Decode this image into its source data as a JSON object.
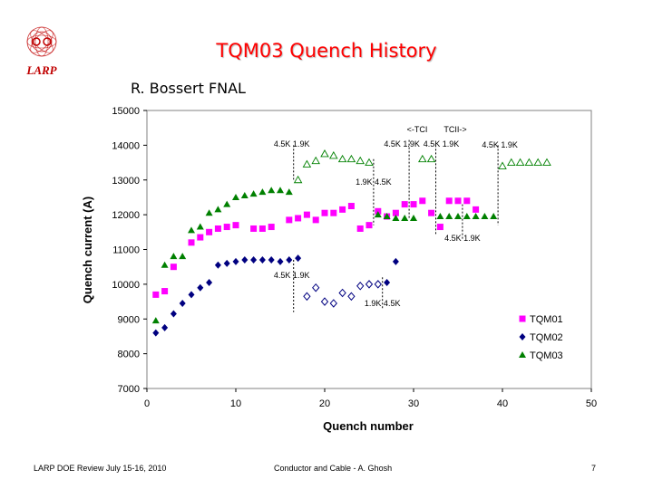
{
  "slide": {
    "title": "TQM03 Quench History",
    "subtitle": "R. Bossert FNAL",
    "logo_text": "LARP",
    "footer_left": "LARP DOE Review July 15-16, 2010",
    "footer_center": "Conductor and Cable - A. Ghosh",
    "page_number": "7"
  },
  "chart_data": {
    "type": "scatter",
    "xlabel": "Quench number",
    "ylabel": "Quench current (A)",
    "xlim": [
      0,
      50
    ],
    "ylim": [
      7000,
      15000
    ],
    "x_ticks": [
      0,
      10,
      20,
      30,
      40,
      50
    ],
    "y_ticks": [
      7000,
      8000,
      9000,
      10000,
      11000,
      12000,
      13000,
      14000,
      15000
    ],
    "series": [
      {
        "name": "TQM01",
        "marker": "square",
        "color": "#ff00ff",
        "points": [
          [
            1,
            9700
          ],
          [
            2,
            9800
          ],
          [
            3,
            10500
          ],
          [
            5,
            11200
          ],
          [
            6,
            11350
          ],
          [
            7,
            11500
          ],
          [
            8,
            11600
          ],
          [
            9,
            11650
          ],
          [
            10,
            11700
          ],
          [
            12,
            11600
          ],
          [
            13,
            11600
          ],
          [
            14,
            11650
          ],
          [
            16,
            11850
          ],
          [
            17,
            11900
          ],
          [
            18,
            12000
          ],
          [
            19,
            11850
          ],
          [
            20,
            12050
          ],
          [
            21,
            12050
          ],
          [
            22,
            12150
          ],
          [
            23,
            12250
          ],
          [
            24,
            11600
          ],
          [
            25,
            11700
          ],
          [
            26,
            12100
          ],
          [
            27,
            11950
          ],
          [
            28,
            12050
          ],
          [
            29,
            12300
          ],
          [
            30,
            12300
          ],
          [
            31,
            12400
          ],
          [
            32,
            12050
          ],
          [
            33,
            11650
          ],
          [
            34,
            12400
          ],
          [
            35,
            12400
          ],
          [
            36,
            12400
          ],
          [
            37,
            12150
          ]
        ]
      },
      {
        "name": "TQM02",
        "marker": "diamond",
        "color": "#000080",
        "points": [
          [
            1,
            8600
          ],
          [
            2,
            8750
          ],
          [
            3,
            9150
          ],
          [
            4,
            9450
          ],
          [
            5,
            9700
          ],
          [
            6,
            9900
          ],
          [
            7,
            10050
          ],
          [
            8,
            10550
          ],
          [
            9,
            10600
          ],
          [
            10,
            10650
          ],
          [
            11,
            10700
          ],
          [
            12,
            10700
          ],
          [
            13,
            10700
          ],
          [
            14,
            10700
          ],
          [
            15,
            10650
          ],
          [
            16,
            10700
          ],
          [
            17,
            10750
          ],
          [
            18,
            9650
          ],
          [
            19,
            9900
          ],
          [
            20,
            9500
          ],
          [
            21,
            9450
          ],
          [
            22,
            9750
          ],
          [
            23,
            9650
          ],
          [
            24,
            9950
          ],
          [
            25,
            10000
          ],
          [
            26,
            10000
          ],
          [
            27,
            10050
          ],
          [
            28,
            10650
          ]
        ]
      },
      {
        "name": "TQM03",
        "marker": "triangle",
        "color": "#008000",
        "points": [
          [
            1,
            8950
          ],
          [
            2,
            10550
          ],
          [
            3,
            10800
          ],
          [
            4,
            10800
          ],
          [
            5,
            11550
          ],
          [
            6,
            11650
          ],
          [
            7,
            12050
          ],
          [
            8,
            12150
          ],
          [
            9,
            12300
          ],
          [
            10,
            12500
          ],
          [
            11,
            12550
          ],
          [
            12,
            12600
          ],
          [
            13,
            12650
          ],
          [
            14,
            12700
          ],
          [
            15,
            12700
          ],
          [
            16,
            12650
          ],
          [
            17,
            13000
          ],
          [
            18,
            13450
          ],
          [
            19,
            13550
          ],
          [
            20,
            13750
          ],
          [
            21,
            13700
          ],
          [
            22,
            13600
          ],
          [
            23,
            13600
          ],
          [
            24,
            13550
          ],
          [
            25,
            13500
          ],
          [
            26,
            12000
          ],
          [
            27,
            11950
          ],
          [
            28,
            11900
          ],
          [
            29,
            11900
          ],
          [
            30,
            11900
          ],
          [
            31,
            13600
          ],
          [
            32,
            13600
          ],
          [
            33,
            11950
          ],
          [
            34,
            11950
          ],
          [
            35,
            11950
          ],
          [
            36,
            11950
          ],
          [
            37,
            11950
          ],
          [
            38,
            11950
          ],
          [
            39,
            11950
          ],
          [
            40,
            13400
          ],
          [
            41,
            13500
          ],
          [
            42,
            13500
          ],
          [
            43,
            13500
          ],
          [
            44,
            13500
          ],
          [
            45,
            13500
          ]
        ]
      }
    ],
    "hollow_points": [
      {
        "series": "TQM02",
        "x": [
          18,
          19,
          20,
          21,
          22,
          23,
          24,
          25,
          26
        ]
      },
      {
        "series": "TQM03",
        "x": [
          17,
          18,
          19,
          20,
          21,
          22,
          23,
          24,
          25,
          31,
          32,
          40,
          41,
          42,
          43,
          44,
          45
        ]
      }
    ],
    "legend": {
      "placement": "bottom-right",
      "entries": [
        "TQM01",
        "TQM02",
        "TQM03"
      ]
    },
    "dashed_lines": [
      {
        "x": 16.5,
        "y_range": [
          13000,
          14000
        ],
        "label": "4.5K 1.9K"
      },
      {
        "x": 16.5,
        "y_range": [
          9200,
          10700
        ],
        "label": "4.5K 1.9K"
      },
      {
        "x": 25.5,
        "y_range": [
          11700,
          13600
        ],
        "label": "1.9K 4.5K"
      },
      {
        "x": 26.5,
        "y_range": [
          9300,
          10200
        ],
        "label": "1.9K 4.5K"
      },
      {
        "x": 29.5,
        "y_range": [
          11900,
          14150
        ],
        "label": "4.5K 1.9K"
      },
      {
        "x": 32.5,
        "y_range": [
          11400,
          14000
        ],
        "label": "4.5K 1.9K"
      },
      {
        "x": 35.5,
        "y_range": [
          11300,
          12300
        ],
        "label": "4.5K 1.9K"
      },
      {
        "x": 39.5,
        "y_range": [
          11700,
          14000
        ],
        "label": "4.5K 1.9K"
      }
    ],
    "annotations": [
      "<-TCI",
      "TCII->"
    ]
  }
}
